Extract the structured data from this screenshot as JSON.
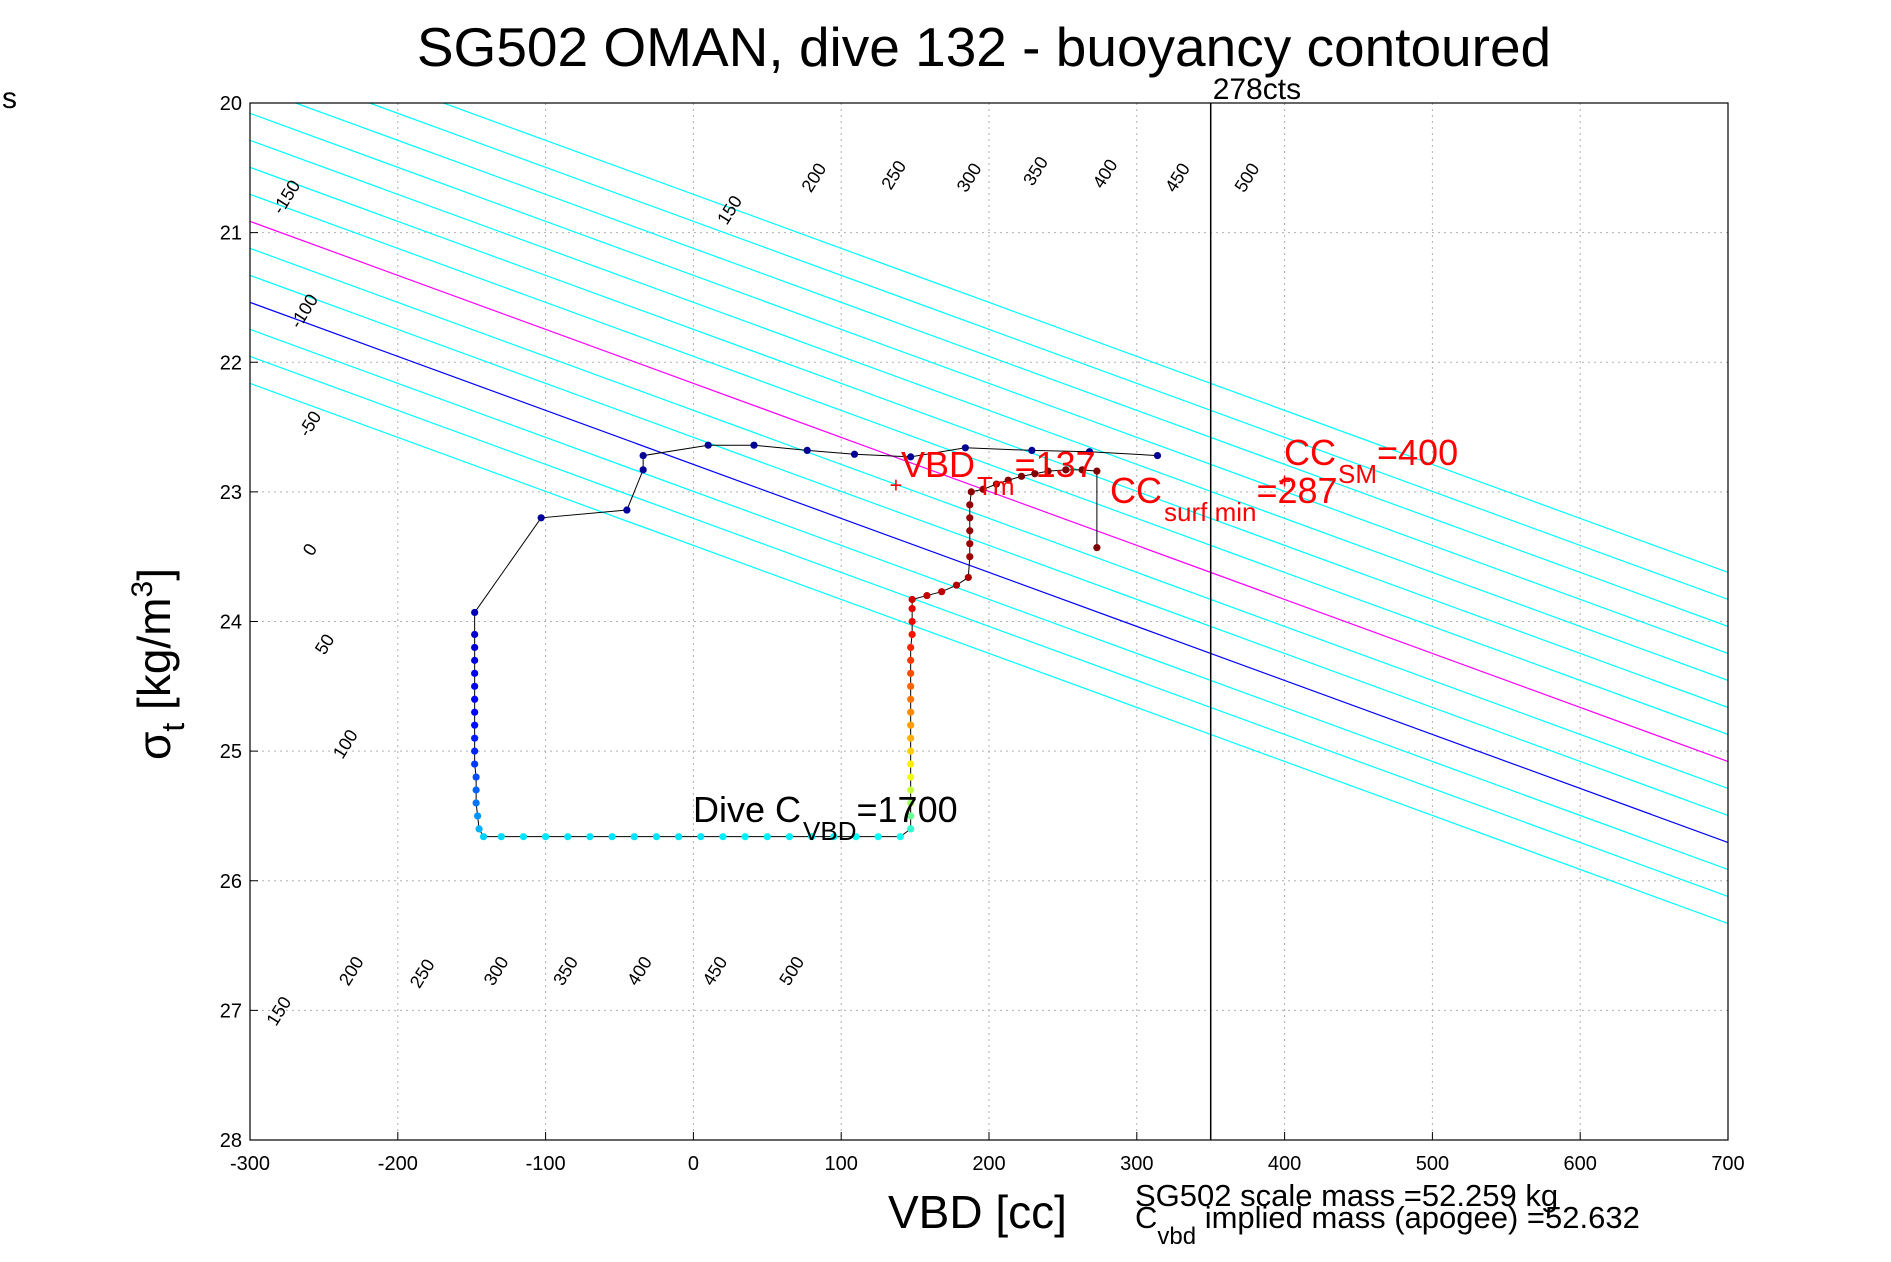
{
  "chart_data": {
    "type": "scatter",
    "title": "SG502 OMAN, dive 132 - buoyancy contoured",
    "corner_label": "s",
    "xlabel": "VBD [cc]",
    "ylabel": {
      "main": "σ",
      "sub": "t",
      "unit_open": " [kg/m",
      "unit_sup": "3",
      "unit_close": "]"
    },
    "xlim": [
      -300,
      700
    ],
    "ylim": [
      20,
      28
    ],
    "y_reversed": true,
    "grid": true,
    "x_ticks": [
      "-300",
      "-200",
      "-100",
      "0",
      "100",
      "200",
      "300",
      "400",
      "500",
      "600",
      "700"
    ],
    "y_ticks": [
      "20",
      "21",
      "22",
      "23",
      "24",
      "25",
      "26",
      "27",
      "28"
    ],
    "colors": {
      "cyan_contour": "#00ffff",
      "magenta_contour": "#ff00ff",
      "blue_contour": "#0000ff",
      "annotation": "#ff0000",
      "path": "#000000"
    },
    "contours": {
      "description_of_encoding": "buoyancy contour lines: VBD = offset + slope * (sigma_t - 22.913)",
      "slope_cc_per_sigma": 240,
      "lines": [
        {
          "label": "-150",
          "offset": -120,
          "color": "cyan"
        },
        {
          "label": "-100",
          "offset": -70,
          "color": "cyan"
        },
        {
          "label": "-50",
          "offset": -20,
          "color": "cyan"
        },
        {
          "label": "0",
          "offset": 30,
          "color": "blue"
        },
        {
          "label": "50",
          "offset": 80,
          "color": "cyan"
        },
        {
          "label": "100",
          "offset": 130,
          "color": "cyan"
        },
        {
          "label": "150",
          "offset": 180,
          "color": "magenta"
        },
        {
          "label": "200",
          "offset": 230,
          "color": "cyan"
        },
        {
          "label": "250",
          "offset": 280,
          "color": "cyan"
        },
        {
          "label": "300",
          "offset": 330,
          "color": "cyan"
        },
        {
          "label": "350",
          "offset": 380,
          "color": "cyan"
        },
        {
          "label": "400",
          "offset": 430,
          "color": "cyan"
        },
        {
          "label": "450",
          "offset": 480,
          "color": "cyan"
        },
        {
          "label": "500",
          "offset": 530,
          "color": "cyan"
        }
      ]
    },
    "contour_labels_top": [
      {
        "text": "-150",
        "x": -272,
        "y": 20.75
      },
      {
        "text": "-100",
        "x": -260,
        "y": 21.63
      },
      {
        "text": "-50",
        "x": -256,
        "y": 22.5
      },
      {
        "text": "0",
        "x": -256,
        "y": 23.47
      },
      {
        "text": "50",
        "x": -246,
        "y": 24.2
      },
      {
        "text": "100",
        "x": -232,
        "y": 24.97
      },
      {
        "text": "150",
        "x": 28,
        "y": 20.85
      },
      {
        "text": "200",
        "x": 85,
        "y": 20.6
      },
      {
        "text": "250",
        "x": 139,
        "y": 20.58
      },
      {
        "text": "300",
        "x": 190,
        "y": 20.6
      },
      {
        "text": "350",
        "x": 235,
        "y": 20.55
      },
      {
        "text": "400",
        "x": 282,
        "y": 20.57
      },
      {
        "text": "450",
        "x": 331,
        "y": 20.6
      },
      {
        "text": "500",
        "x": 378,
        "y": 20.6
      }
    ],
    "contour_labels_bottom": [
      {
        "text": "150",
        "x": -277,
        "y": 27.03
      },
      {
        "text": "200",
        "x": -228,
        "y": 26.72
      },
      {
        "text": "250",
        "x": -180,
        "y": 26.74
      },
      {
        "text": "300",
        "x": -130,
        "y": 26.72
      },
      {
        "text": "350",
        "x": -83,
        "y": 26.72
      },
      {
        "text": "400",
        "x": -33,
        "y": 26.72
      },
      {
        "text": "450",
        "x": 18,
        "y": 26.72
      },
      {
        "text": "500",
        "x": 70,
        "y": 26.72
      }
    ],
    "vertical_line": {
      "x": 350,
      "label": "278cts"
    },
    "dive_path": [
      {
        "x": 314,
        "y": 22.72,
        "c": 0.02
      },
      {
        "x": 268,
        "y": 22.69,
        "c": 0.02
      },
      {
        "x": 229,
        "y": 22.68,
        "c": 0.02
      },
      {
        "x": 184,
        "y": 22.66,
        "c": 0.02
      },
      {
        "x": 147,
        "y": 22.73,
        "c": 0.02
      },
      {
        "x": 109,
        "y": 22.71,
        "c": 0.02
      },
      {
        "x": 77,
        "y": 22.68,
        "c": 0.02
      },
      {
        "x": 41,
        "y": 22.64,
        "c": 0.02
      },
      {
        "x": 10,
        "y": 22.64,
        "c": 0.02
      },
      {
        "x": -34,
        "y": 22.72,
        "c": 0.02
      },
      {
        "x": -34,
        "y": 22.83,
        "c": 0.02
      },
      {
        "x": -45,
        "y": 23.14,
        "c": 0.03
      },
      {
        "x": -103,
        "y": 23.2,
        "c": 0.03
      },
      {
        "x": -148,
        "y": 23.93,
        "c": 0.05
      },
      {
        "x": -148,
        "y": 24.1,
        "c": 0.07
      },
      {
        "x": -148,
        "y": 24.2,
        "c": 0.08
      },
      {
        "x": -148,
        "y": 24.3,
        "c": 0.09
      },
      {
        "x": -148,
        "y": 24.4,
        "c": 0.1
      },
      {
        "x": -148,
        "y": 24.5,
        "c": 0.11
      },
      {
        "x": -148,
        "y": 24.6,
        "c": 0.12
      },
      {
        "x": -148,
        "y": 24.7,
        "c": 0.13
      },
      {
        "x": -148,
        "y": 24.8,
        "c": 0.14
      },
      {
        "x": -148,
        "y": 24.9,
        "c": 0.15
      },
      {
        "x": -148,
        "y": 25.0,
        "c": 0.16
      },
      {
        "x": -148,
        "y": 25.1,
        "c": 0.18
      },
      {
        "x": -147,
        "y": 25.2,
        "c": 0.2
      },
      {
        "x": -147,
        "y": 25.3,
        "c": 0.22
      },
      {
        "x": -147,
        "y": 25.4,
        "c": 0.24
      },
      {
        "x": -146,
        "y": 25.5,
        "c": 0.27
      },
      {
        "x": -145,
        "y": 25.6,
        "c": 0.3
      },
      {
        "x": -142,
        "y": 25.66,
        "c": 0.33
      },
      {
        "x": -130,
        "y": 25.66,
        "c": 0.34
      },
      {
        "x": -115,
        "y": 25.66,
        "c": 0.35
      },
      {
        "x": -100,
        "y": 25.66,
        "c": 0.35
      },
      {
        "x": -85,
        "y": 25.66,
        "c": 0.35
      },
      {
        "x": -70,
        "y": 25.66,
        "c": 0.35
      },
      {
        "x": -55,
        "y": 25.66,
        "c": 0.35
      },
      {
        "x": -40,
        "y": 25.66,
        "c": 0.35
      },
      {
        "x": -25,
        "y": 25.66,
        "c": 0.35
      },
      {
        "x": -10,
        "y": 25.66,
        "c": 0.35
      },
      {
        "x": 5,
        "y": 25.66,
        "c": 0.35
      },
      {
        "x": 20,
        "y": 25.66,
        "c": 0.36
      },
      {
        "x": 35,
        "y": 25.66,
        "c": 0.36
      },
      {
        "x": 50,
        "y": 25.66,
        "c": 0.36
      },
      {
        "x": 65,
        "y": 25.66,
        "c": 0.36
      },
      {
        "x": 80,
        "y": 25.66,
        "c": 0.37
      },
      {
        "x": 95,
        "y": 25.66,
        "c": 0.37
      },
      {
        "x": 110,
        "y": 25.66,
        "c": 0.38
      },
      {
        "x": 125,
        "y": 25.66,
        "c": 0.38
      },
      {
        "x": 140,
        "y": 25.66,
        "c": 0.39
      },
      {
        "x": 147,
        "y": 25.6,
        "c": 0.42
      },
      {
        "x": 147,
        "y": 25.5,
        "c": 0.48
      },
      {
        "x": 147,
        "y": 25.4,
        "c": 0.53
      },
      {
        "x": 147,
        "y": 25.3,
        "c": 0.57
      },
      {
        "x": 147,
        "y": 25.2,
        "c": 0.61
      },
      {
        "x": 147,
        "y": 25.1,
        "c": 0.64
      },
      {
        "x": 147,
        "y": 25.0,
        "c": 0.67
      },
      {
        "x": 147,
        "y": 24.9,
        "c": 0.7
      },
      {
        "x": 147,
        "y": 24.8,
        "c": 0.72
      },
      {
        "x": 147,
        "y": 24.7,
        "c": 0.74
      },
      {
        "x": 147,
        "y": 24.6,
        "c": 0.76
      },
      {
        "x": 147,
        "y": 24.5,
        "c": 0.78
      },
      {
        "x": 147,
        "y": 24.4,
        "c": 0.8
      },
      {
        "x": 147,
        "y": 24.3,
        "c": 0.82
      },
      {
        "x": 147,
        "y": 24.2,
        "c": 0.84
      },
      {
        "x": 148,
        "y": 24.1,
        "c": 0.86
      },
      {
        "x": 148,
        "y": 24.0,
        "c": 0.88
      },
      {
        "x": 148,
        "y": 23.9,
        "c": 0.9
      },
      {
        "x": 148,
        "y": 23.83,
        "c": 0.92
      },
      {
        "x": 158,
        "y": 23.8,
        "c": 0.93
      },
      {
        "x": 168,
        "y": 23.77,
        "c": 0.94
      },
      {
        "x": 178,
        "y": 23.72,
        "c": 0.95
      },
      {
        "x": 186,
        "y": 23.66,
        "c": 0.96
      },
      {
        "x": 187,
        "y": 23.5,
        "c": 0.97
      },
      {
        "x": 187,
        "y": 23.4,
        "c": 0.97
      },
      {
        "x": 187,
        "y": 23.3,
        "c": 0.98
      },
      {
        "x": 187,
        "y": 23.2,
        "c": 0.98
      },
      {
        "x": 187,
        "y": 23.1,
        "c": 0.98
      },
      {
        "x": 188,
        "y": 23.0,
        "c": 0.99
      },
      {
        "x": 196,
        "y": 22.98,
        "c": 0.99
      },
      {
        "x": 205,
        "y": 22.94,
        "c": 0.99
      },
      {
        "x": 213,
        "y": 22.91,
        "c": 0.99
      },
      {
        "x": 222,
        "y": 22.88,
        "c": 1.0
      },
      {
        "x": 231,
        "y": 22.86,
        "c": 1.0
      },
      {
        "x": 240,
        "y": 22.84,
        "c": 1.0
      },
      {
        "x": 252,
        "y": 22.83,
        "c": 1.0
      },
      {
        "x": 263,
        "y": 22.83,
        "c": 1.0
      },
      {
        "x": 273,
        "y": 22.84,
        "c": 1.0
      },
      {
        "x": 273,
        "y": 23.43,
        "c": 1.0
      }
    ],
    "annotations": {
      "vbd_tm": {
        "main": "VBD",
        "sub": "Tm",
        "value": "=137",
        "mark_x": 137,
        "mark_y": 22.95
      },
      "cc_surf_min": {
        "main": "CC",
        "sub": "surf min",
        "value": "=287"
      },
      "cc_sm": {
        "main": "CC",
        "sub": "SM",
        "value": "=400",
        "mark_x": 400,
        "mark_y": 22.92
      },
      "dive_cvbd": {
        "main": "Dive C",
        "sub": "VBD",
        "value": "=1700"
      }
    },
    "footer": {
      "scale_mass": "SG502 scale mass =52.259 kg",
      "implied_main": "C",
      "implied_sub": "vbd",
      "implied_rest": " implied mass (apogee) =52.632"
    }
  }
}
